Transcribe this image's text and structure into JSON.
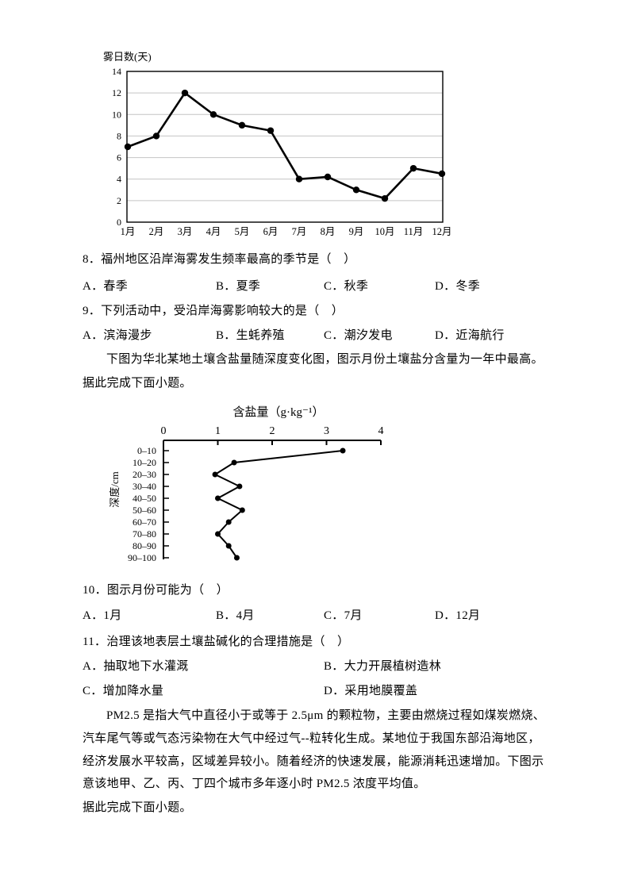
{
  "chart_data": [
    {
      "type": "line",
      "title": "雾日数(天)",
      "categories": [
        "1月",
        "2月",
        "3月",
        "4月",
        "5月",
        "6月",
        "7月",
        "8月",
        "9月",
        "10月",
        "11月",
        "12月"
      ],
      "values": [
        7,
        8,
        12,
        10,
        9,
        8.5,
        4,
        4.2,
        3,
        2.2,
        5,
        4.5
      ],
      "xlabel": "",
      "ylabel": "雾日数(天)",
      "ylim": [
        0,
        14
      ],
      "ytick_step": 2,
      "grid": true,
      "legend": "none",
      "marker": "filled-circle"
    },
    {
      "type": "line",
      "orientation": "horizontal-profile",
      "title": "含盐量（g·kg⁻¹）",
      "ylabel": "深度/cm",
      "categories": [
        "0–10",
        "10–20",
        "20–30",
        "30–40",
        "40–50",
        "50–60",
        "60–70",
        "70–80",
        "80–90",
        "90–100"
      ],
      "values": [
        3.3,
        1.3,
        0.95,
        1.4,
        1.0,
        1.45,
        1.2,
        1.0,
        1.2,
        1.35
      ],
      "xlim": [
        0,
        4
      ],
      "xticks": [
        0,
        1,
        2,
        3,
        4
      ],
      "grid": false,
      "legend": "none",
      "marker": "filled-circle"
    }
  ],
  "questions": [
    {
      "stem": "8．福州地区沿岸海雾发生频率最高的季节是（　）",
      "options": [
        "A．春季",
        "B．夏季",
        "C．秋季",
        "D．冬季"
      ]
    },
    {
      "stem": "9．下列活动中，受沿岸海雾影响较大的是（　）",
      "options": [
        "A．滨海漫步",
        "B．生蚝养殖",
        "C．潮汐发电",
        "D．近海航行"
      ]
    },
    {
      "stem": "10．图示月份可能为（　）",
      "options": [
        "A．1月",
        "B．4月",
        "C．7月",
        "D．12月"
      ]
    },
    {
      "stem": "11．治理该地表层土壤盐碱化的合理措施是（　）",
      "options": [
        "A．抽取地下水灌溉",
        "B．大力开展植树造林",
        "C．增加降水量",
        "D．采用地膜覆盖"
      ]
    }
  ],
  "salt_intro": {
    "line1": "下图为华北某地土壤含盐量随深度变化图，图示月份土壤盐分含量为一年中最高。",
    "line2": "据此完成下面小题。"
  },
  "pm_intro": {
    "lines": [
      "PM2.5 是指大气中直径小于或等于 2.5μm 的颗粒物，主要由燃烧过程如煤炭燃烧、",
      "汽车尾气等或气态污染物在大气中经过气--粒转化生成。某地位于我国东部沿海地区，",
      "经济发展水平较高，区域差异较小。随着经济的快速发展，能源消耗迅速增加。下图示",
      "意该地甲、乙、丙、丁四个城市多年逐小时 PM2.5 浓度平均值。"
    ],
    "closing": "据此完成下面小题。"
  },
  "colors": {
    "line": "#000000",
    "grid": "#c4c4c4",
    "background": "#ffffff"
  }
}
